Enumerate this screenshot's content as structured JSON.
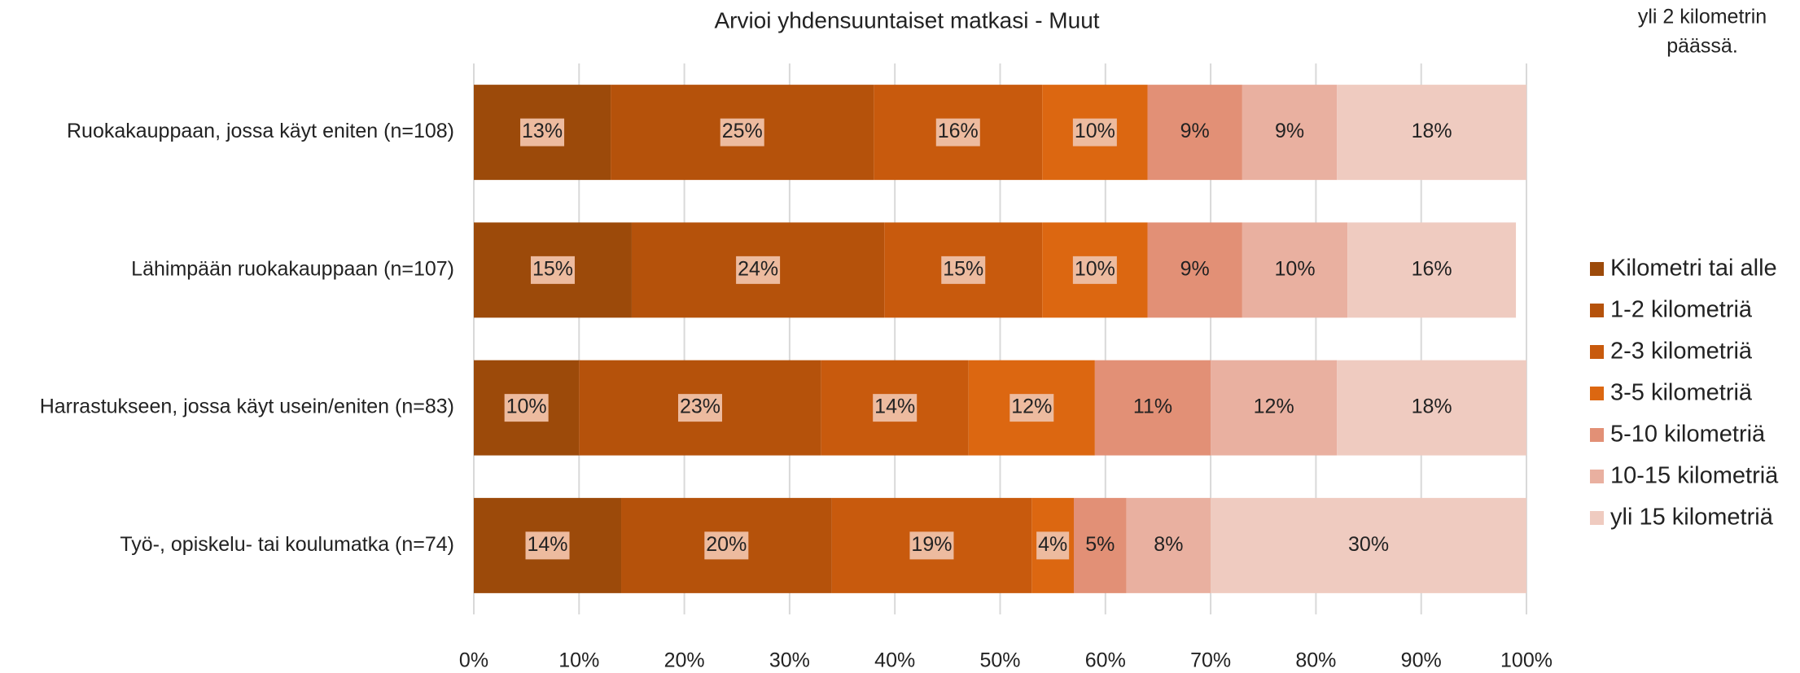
{
  "chart_data": {
    "type": "stacked-bar-horizontal",
    "title": "Arvioi yhdensuuntaiset matkasi - Muut",
    "annotation": [
      "yli 2 kilometrin",
      "päässä."
    ],
    "categories": [
      "Ruokakauppaan, jossa käyt eniten (n=108)",
      "Lähimpään ruokakauppaan (n=107)",
      "Harrastukseen, jossa käyt usein/eniten (n=83)",
      "Työ-, opiskelu- tai koulumatka (n=74)"
    ],
    "series": [
      {
        "name": "Kilometri tai alle",
        "color": "#9c4a0a",
        "values": [
          13,
          15,
          10,
          14
        ],
        "value_labels": [
          "13%",
          "15%",
          "10%",
          "14%"
        ]
      },
      {
        "name": "1-2 kilometriä",
        "color": "#b5520b",
        "values": [
          25,
          24,
          23,
          20
        ],
        "value_labels": [
          "25%",
          "24%",
          "23%",
          "20%"
        ]
      },
      {
        "name": "2-3 kilometriä",
        "color": "#c85a0d",
        "values": [
          16,
          15,
          14,
          19
        ],
        "value_labels": [
          "16%",
          "15%",
          "14%",
          "19%"
        ]
      },
      {
        "name": "3-5 kilometriä",
        "color": "#dc6711",
        "values": [
          10,
          10,
          12,
          4
        ],
        "value_labels": [
          "10%",
          "10%",
          "12%",
          "4%"
        ]
      },
      {
        "name": "5-10 kilometriä",
        "color": "#e29076",
        "values": [
          9,
          9,
          11,
          5
        ],
        "value_labels": [
          "9%",
          "9%",
          "11%",
          "5%"
        ]
      },
      {
        "name": "10-15 kilometriä",
        "color": "#e9b0a0",
        "values": [
          9,
          10,
          12,
          8
        ],
        "value_labels": [
          "9%",
          "10%",
          "12%",
          "8%"
        ]
      },
      {
        "name": "yli 15 kilometriä",
        "color": "#efcbc0",
        "values": [
          18,
          16,
          18,
          30
        ],
        "value_labels": [
          "18%",
          "16%",
          "18%",
          "30%"
        ]
      }
    ],
    "xlim": [
      0,
      100
    ],
    "xticks": [
      {
        "value": 0,
        "label": "0%"
      },
      {
        "value": 10,
        "label": "10%"
      },
      {
        "value": 20,
        "label": "20%"
      },
      {
        "value": 30,
        "label": "30%"
      },
      {
        "value": 40,
        "label": "40%"
      },
      {
        "value": 50,
        "label": "50%"
      },
      {
        "value": 60,
        "label": "60%"
      },
      {
        "value": 70,
        "label": "70%"
      },
      {
        "value": 80,
        "label": "80%"
      },
      {
        "value": 90,
        "label": "90%"
      },
      {
        "value": 100,
        "label": "100%"
      }
    ],
    "grid": true,
    "legend": "right"
  }
}
